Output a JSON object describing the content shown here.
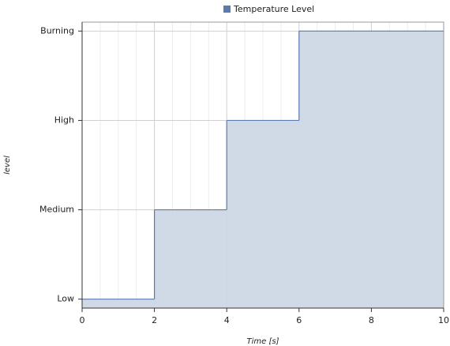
{
  "chart_data": {
    "type": "step-area",
    "legend": "top",
    "x_label": "Time [s]",
    "y_label": "level",
    "x": [
      0,
      2,
      4,
      6
    ],
    "series": [
      {
        "name": "Temperature Level",
        "color": "#5a7bb0",
        "fill": "#cdd8e6",
        "values": [
          0,
          1,
          2,
          3
        ]
      }
    ],
    "xlim": [
      0,
      10
    ],
    "xticks": [
      0,
      2,
      4,
      6,
      8,
      10
    ],
    "ylim": [
      -0.1,
      3.1
    ],
    "yticks": [
      {
        "value": 0,
        "label": "Low"
      },
      {
        "value": 1,
        "label": "Medium"
      },
      {
        "value": 2,
        "label": "High"
      },
      {
        "value": 3,
        "label": "Burning"
      }
    ],
    "grid": true
  }
}
